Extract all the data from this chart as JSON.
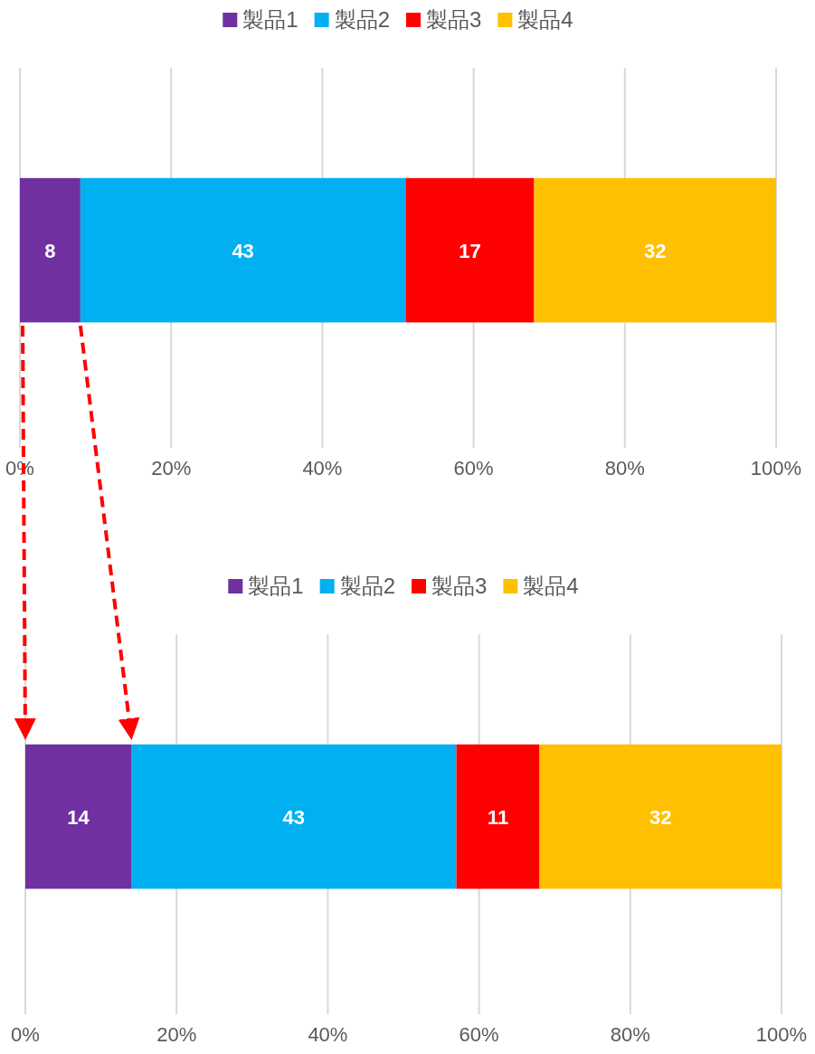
{
  "chart_data": [
    {
      "type": "bar",
      "orientation": "horizontal",
      "stacked": true,
      "categories": [
        null
      ],
      "series": [
        {
          "name": "製品1",
          "color": "#7030a0",
          "values": [
            8
          ]
        },
        {
          "name": "製品2",
          "color": "#00b0f0",
          "values": [
            43
          ]
        },
        {
          "name": "製品3",
          "color": "#ff0000",
          "values": [
            17
          ]
        },
        {
          "name": "製品4",
          "color": "#ffc000",
          "values": [
            32
          ]
        }
      ],
      "xlim": [
        0,
        100
      ],
      "xticks": [
        {
          "value": 0,
          "label": "0%"
        },
        {
          "value": 20,
          "label": "20%"
        },
        {
          "value": 40,
          "label": "40%"
        },
        {
          "value": 60,
          "label": "60%"
        },
        {
          "value": 80,
          "label": "80%"
        },
        {
          "value": 100,
          "label": "100%"
        }
      ],
      "grid": "x",
      "legend": "top",
      "data_labels": true
    },
    {
      "type": "bar",
      "orientation": "horizontal",
      "stacked": true,
      "categories": [
        null
      ],
      "series": [
        {
          "name": "製品1",
          "color": "#7030a0",
          "values": [
            14
          ]
        },
        {
          "name": "製品2",
          "color": "#00b0f0",
          "values": [
            43
          ]
        },
        {
          "name": "製品3",
          "color": "#ff0000",
          "values": [
            11
          ]
        },
        {
          "name": "製品4",
          "color": "#ffc000",
          "values": [
            32
          ]
        }
      ],
      "xlim": [
        0,
        100
      ],
      "xticks": [
        {
          "value": 0,
          "label": "0%"
        },
        {
          "value": 20,
          "label": "20%"
        },
        {
          "value": 40,
          "label": "40%"
        },
        {
          "value": 60,
          "label": "60%"
        },
        {
          "value": 80,
          "label": "80%"
        },
        {
          "value": 100,
          "label": "100%"
        }
      ],
      "grid": "x",
      "legend": "top",
      "data_labels": true
    }
  ]
}
